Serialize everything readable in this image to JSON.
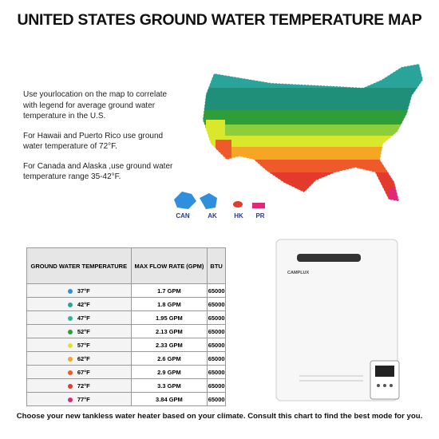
{
  "header": {
    "title": "UNITED STATES GROUND WATER TEMPERATURE MAP"
  },
  "notes": [
    "Use yourlocation on the map to correlate with legend for average ground water temperature in the U.S.",
    "For Hawaii and Puerto Rico use ground water temperature of 72°F.",
    "For Canada and Alaska ,use ground water temperature range 35-42°F."
  ],
  "map": {
    "insets": [
      "CAN",
      "AK",
      "HK",
      "PR"
    ]
  },
  "table": {
    "columns": [
      "GROUND WATER TEMPERATURE",
      "MAX FLOW RATE (GPM)",
      "BTU"
    ],
    "rows": [
      [
        "37°F",
        "1.7 GPM",
        "65000"
      ],
      [
        "42°F",
        "1.8 GPM",
        "65000"
      ],
      [
        "47°F",
        "1.95 GPM",
        "65000"
      ],
      [
        "52°F",
        "2.13 GPM",
        "65000"
      ],
      [
        "57°F",
        "2.33 GPM",
        "65000"
      ],
      [
        "62°F",
        "2.6 GPM",
        "65000"
      ],
      [
        "67°F",
        "2.9 GPM",
        "65000"
      ],
      [
        "72°F",
        "3.3 GPM",
        "65000"
      ],
      [
        "77°F",
        "3.84 GPM",
        "65000"
      ]
    ],
    "colors": [
      "#2f8fdc",
      "#2aa39a",
      "#2fb58f",
      "#2e9e3a",
      "#d9e82a",
      "#f5a623",
      "#ef5a2a",
      "#e33a2c",
      "#e0287a"
    ]
  },
  "product": {
    "brand": "CAMPLUX"
  },
  "footer": "Choose your new tankless water heater based on your climate. Consult this chart to find the best mode for you."
}
